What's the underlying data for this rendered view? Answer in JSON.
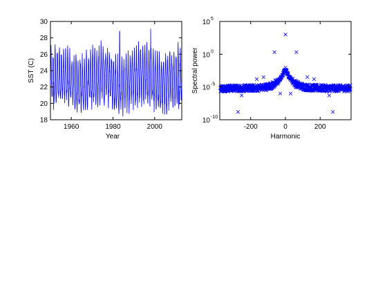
{
  "chart_data": [
    {
      "type": "line",
      "title": "",
      "xlabel": "Year",
      "ylabel": "SST (C)",
      "xlim": [
        1950,
        2013
      ],
      "ylim": [
        18,
        30
      ],
      "xticks": [
        1960,
        1980,
        2000
      ],
      "yticks": [
        18,
        20,
        22,
        24,
        26,
        28,
        30
      ],
      "grid": false,
      "line_color": "#0000ff",
      "series": [
        {
          "start_year": 1950,
          "step_years": 0.08333,
          "monthly_cycle": [
            22.0,
            23.5,
            25.0,
            26.0,
            25.8,
            24.6,
            23.0,
            21.6,
            20.5,
            20.0,
            20.2,
            21.0
          ],
          "notable_points": [
            {
              "x": 1983.2,
              "y": 28.8
            },
            {
              "x": 1998.1,
              "y": 29.1
            },
            {
              "x": 1951.5,
              "y": 19.2
            },
            {
              "x": 2011.5,
              "y": 19.3
            }
          ]
        }
      ]
    },
    {
      "type": "scatter",
      "title": "",
      "xlabel": "Harmonic",
      "ylabel": "Spectral power",
      "xlim": [
        -378,
        378
      ],
      "ylim_log10": [
        -10,
        5
      ],
      "yscale": "log",
      "xticks": [
        -200,
        0,
        200
      ],
      "yticks": [
        "10^-10",
        "10^-5",
        "10^0",
        "10^5"
      ],
      "grid": false,
      "marker": "x",
      "marker_color": "#0000ff",
      "series": [
        {
          "floor_log10": -5.2,
          "peak_log10": -2.2,
          "peak_halfwidth": 90,
          "spread_log10": 0.5,
          "outliers": [
            {
              "x": 0,
              "log10_y": 3.0
            },
            {
              "x": -63,
              "log10_y": 0.3
            },
            {
              "x": 63,
              "log10_y": 0.3
            },
            {
              "x": -126,
              "log10_y": -3.5
            },
            {
              "x": 126,
              "log10_y": -3.5
            },
            {
              "x": -189,
              "log10_y": -4.8
            },
            {
              "x": 189,
              "log10_y": -4.8
            },
            {
              "x": -252,
              "log10_y": -6.3
            },
            {
              "x": 252,
              "log10_y": -6.3
            },
            {
              "x": -273,
              "log10_y": -8.8
            },
            {
              "x": 273,
              "log10_y": -8.8
            },
            {
              "x": -8,
              "log10_y": -2.5
            },
            {
              "x": 8,
              "log10_y": -2.5
            },
            {
              "x": -30,
              "log10_y": -6.0
            },
            {
              "x": 30,
              "log10_y": -6.0
            },
            {
              "x": -165,
              "log10_y": -3.8
            },
            {
              "x": 165,
              "log10_y": -3.8
            }
          ]
        }
      ]
    }
  ]
}
